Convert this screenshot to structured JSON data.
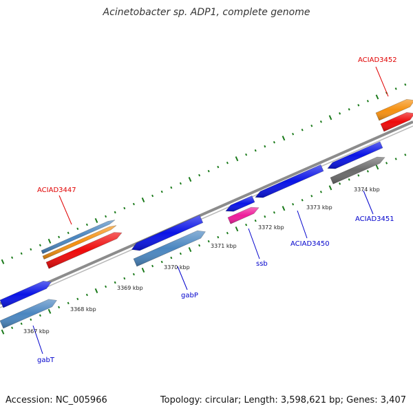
{
  "title": "Acinetobacter sp. ADP1, complete genome",
  "footer": {
    "accession": "Accession: NC_005966",
    "summary": "Topology: circular; Length: 3,598,621 bp; Genes: 3,407"
  },
  "colors": {
    "backbone": "#8c8c8c",
    "ticks": "#1a7a1a",
    "label_forward": "#e00000",
    "label_reverse": "#0000cc",
    "cds_blue": "#0a14e6",
    "cds_steel": "#4a86c0",
    "cds_orange": "#f59010",
    "cds_red": "#ee0a0a",
    "cds_pink": "#ee1c9a",
    "cds_gray": "#6a6a6a"
  },
  "scale_labels": [
    "3367 kbp",
    "3368 kbp",
    "3369 kbp",
    "3370 kbp",
    "3371 kbp",
    "3372 kbp",
    "3373 kbp",
    "3374 kbp"
  ],
  "gene_labels": [
    "ACIAD3452",
    "ACIAD3447",
    "ACIAD3451",
    "ACIAD3450",
    "ssb",
    "gabP",
    "gabT"
  ]
}
